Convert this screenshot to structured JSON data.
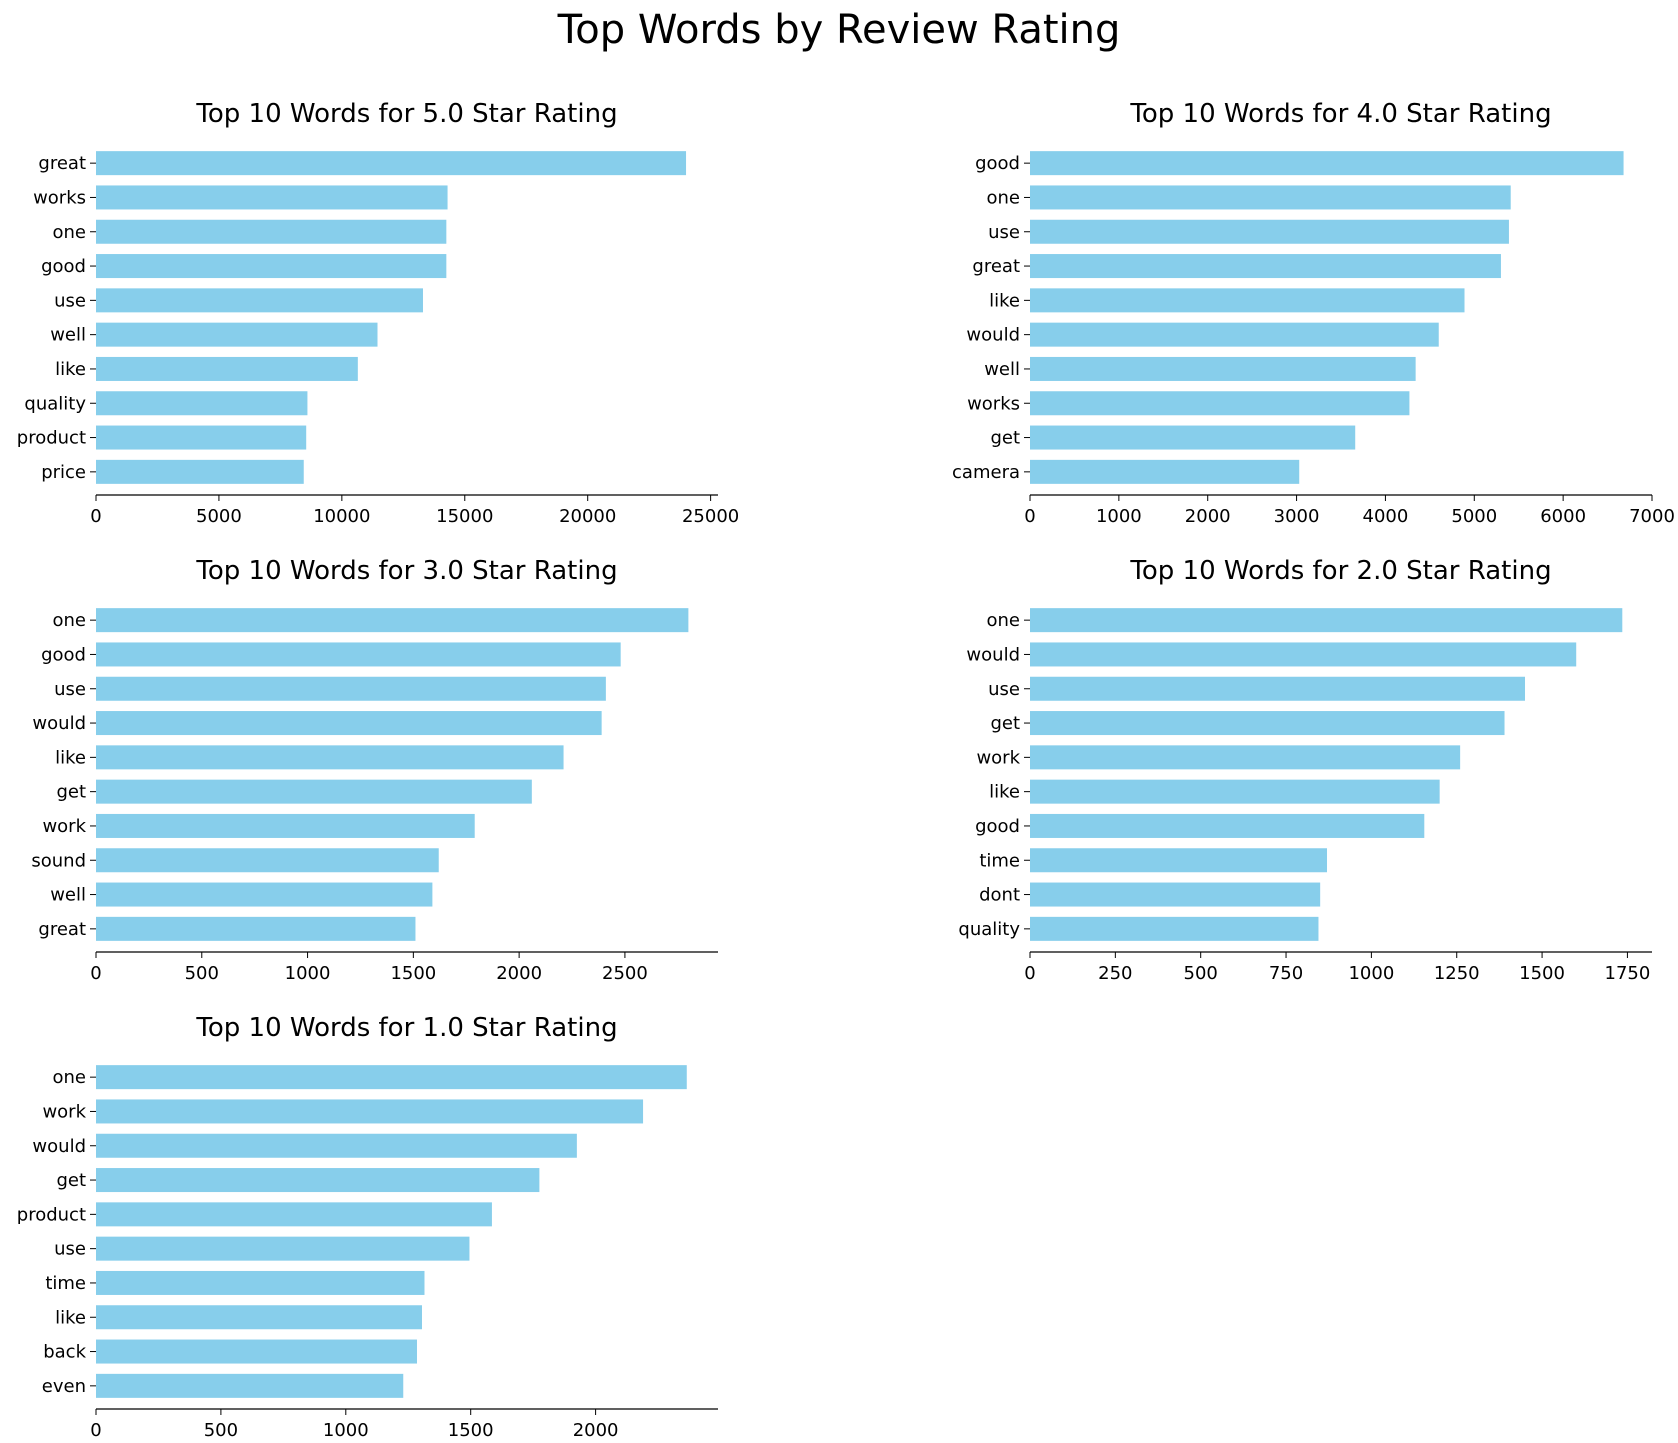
{
  "figure_title": "Top Words by Review Rating",
  "bar_color": "#87CEEB",
  "chart_data": [
    {
      "type": "bar",
      "orientation": "horizontal",
      "title": "Top 10 Words for 5.0 Star Rating",
      "categories": [
        "great",
        "works",
        "one",
        "good",
        "use",
        "well",
        "like",
        "quality",
        "product",
        "price"
      ],
      "values": [
        24000,
        14300,
        14250,
        14250,
        13300,
        11450,
        10650,
        8600,
        8550,
        8450
      ],
      "xlim": [
        0,
        25300
      ],
      "xticks": [
        0,
        5000,
        10000,
        15000,
        20000,
        25000
      ],
      "xlabel": "",
      "ylabel": "",
      "grid": false
    },
    {
      "type": "bar",
      "orientation": "horizontal",
      "title": "Top 10 Words for 4.0 Star Rating",
      "categories": [
        "good",
        "one",
        "use",
        "great",
        "like",
        "would",
        "well",
        "works",
        "get",
        "camera"
      ],
      "values": [
        6680,
        5410,
        5390,
        5300,
        4890,
        4600,
        4340,
        4270,
        3660,
        3030
      ],
      "xlim": [
        0,
        7000
      ],
      "xticks": [
        0,
        1000,
        2000,
        3000,
        4000,
        5000,
        6000,
        7000
      ],
      "xlabel": "",
      "ylabel": "",
      "grid": false
    },
    {
      "type": "bar",
      "orientation": "horizontal",
      "title": "Top 10 Words for 3.0 Star Rating",
      "categories": [
        "one",
        "good",
        "use",
        "would",
        "like",
        "get",
        "work",
        "sound",
        "well",
        "great"
      ],
      "values": [
        2800,
        2480,
        2410,
        2390,
        2210,
        2060,
        1790,
        1620,
        1590,
        1510
      ],
      "xlim": [
        0,
        2940
      ],
      "xticks": [
        0,
        500,
        1000,
        1500,
        2000,
        2500
      ],
      "xlabel": "",
      "ylabel": "",
      "grid": false
    },
    {
      "type": "bar",
      "orientation": "horizontal",
      "title": "Top 10 Words for 2.0 Star Rating",
      "categories": [
        "one",
        "would",
        "use",
        "get",
        "work",
        "like",
        "good",
        "time",
        "dont",
        "quality"
      ],
      "values": [
        1735,
        1600,
        1450,
        1390,
        1260,
        1200,
        1155,
        870,
        850,
        845
      ],
      "xlim": [
        0,
        1822
      ],
      "xticks": [
        0,
        250,
        500,
        750,
        1000,
        1250,
        1500,
        1750
      ],
      "xlabel": "",
      "ylabel": "",
      "grid": false
    },
    {
      "type": "bar",
      "orientation": "horizontal",
      "title": "Top 10 Words for 1.0 Star Rating",
      "categories": [
        "one",
        "work",
        "would",
        "get",
        "product",
        "use",
        "time",
        "like",
        "back",
        "even"
      ],
      "values": [
        2365,
        2190,
        1925,
        1775,
        1585,
        1495,
        1315,
        1305,
        1285,
        1230
      ],
      "xlim": [
        0,
        2490
      ],
      "xticks": [
        0,
        500,
        1000,
        1500,
        2000
      ],
      "xlabel": "",
      "ylabel": "",
      "grid": false
    }
  ]
}
